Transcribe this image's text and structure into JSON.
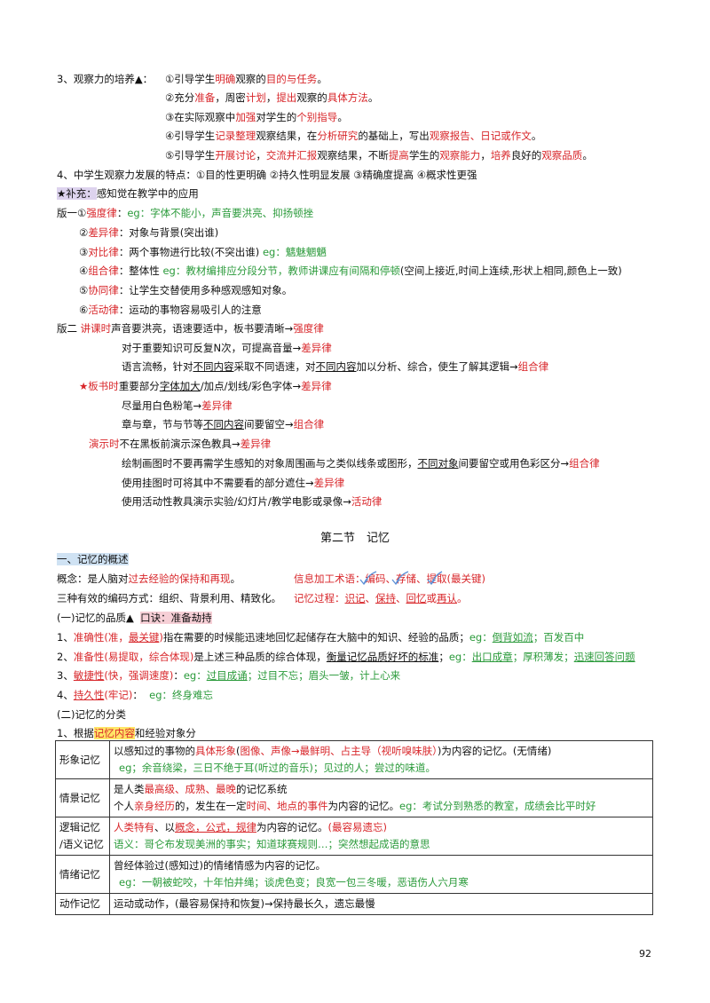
{
  "s3": {
    "label": "3、观察力的培养▲：",
    "i1": {
      "a": "①引导学生",
      "b": "明确",
      "c": "观察的",
      "d": "目的与任务",
      "e": "。"
    },
    "i2": {
      "a": "②充分",
      "b": "准备",
      "c": "，周密",
      "d": "计划",
      "e": "，",
      "f": "提出",
      "g": "观察的",
      "h": "具体方法",
      "i": "。"
    },
    "i3": {
      "a": "③在实际观察中",
      "b": "加强",
      "c": "对学生的",
      "d": "个别指导",
      "e": "。"
    },
    "i4": {
      "a": "④引导学生",
      "b": "记录整理",
      "c": "观察结果，在",
      "d": "分析研究",
      "e": "的基础上，写出",
      "f": "观察报告、日记或作文",
      "g": "。"
    },
    "i5": {
      "a": "⑤引导学生",
      "b": "开展讨论",
      "c": "，",
      "d": "交流并汇报",
      "e": "观察结果，不断",
      "f": "提高",
      "g": "学生的",
      "h": "观察能力",
      "i": "，",
      "j": "培养",
      "k": "良好的",
      "l": "观察品质",
      "m": "。"
    }
  },
  "s4": "4、中学生观察力发展的特点：①目的性更明确 ②持久性明显发展 ③精确度提高 ④概求性更强",
  "supp": {
    "star": "★补充：",
    "text": "感知觉在教学中的应用"
  },
  "v1": {
    "r1": {
      "a": "版一①",
      "b": "强度律",
      "c": "：",
      "d": "eg：字体不能小，声音要洪亮、抑扬顿挫"
    },
    "r2": {
      "a": "②",
      "b": "差异律",
      "c": "：对象与背景(突出谁)"
    },
    "r3": {
      "a": "③",
      "b": "对比律",
      "c": "：两个事物进行比较(不突出谁)",
      "d": "eg：魑魅魍魉"
    },
    "r4": {
      "a": "④",
      "b": "组合律",
      "c": "：整体性",
      "d": "eg：教材编排应分段分节，教师讲课应有间隔和停顿",
      "e": "(空间上接近,时间上连续,形状上相同,颜色上一致)"
    },
    "r5": {
      "a": "⑤",
      "b": "协同律",
      "c": "：让学生交替使用多种感观感知对象。"
    },
    "r6": {
      "a": "⑥",
      "b": "活动律",
      "c": "：运动的事物容易吸引人的注意"
    }
  },
  "v2": {
    "r1": {
      "a": "版二",
      "b": "讲课时",
      "c": "声音要洪亮，语速要适中，板书要清晰",
      "d": "→",
      "e": "强度律"
    },
    "r2": {
      "a": "对于重要知识可反复N次，可提高音量",
      "b": "→",
      "c": "差异律"
    },
    "r3": {
      "a": "语言流畅，针对",
      "b": "不同内容",
      "c": "采取不同语速，对",
      "d": "不同内容",
      "e": "加以分析、综合，使生了解其逻辑",
      "f": "→",
      "g": "组合律"
    },
    "r4": {
      "a": "★板书时",
      "b": "重要部分",
      "c": "字体加大",
      "d": "/加点/划线/彩色字体",
      "e": "→",
      "f": "差异律"
    },
    "r5": {
      "a": "尽量用白色粉笔",
      "b": "→",
      "c": "差异律"
    },
    "r6": {
      "a": "章与章，节与节等",
      "b": "不同内容",
      "c": "间要留空",
      "d": "→",
      "e": "组合律"
    },
    "r7": {
      "a": "演示时",
      "b": "不在黑板前演示深色教具",
      "c": "→",
      "d": "差异律"
    },
    "r8": {
      "a": "绘制画图时不要再需学生感知的对象周围画与之类似线条或图形，",
      "b": "不同对象",
      "c": "间要留空或用色彩区分",
      "d": "→",
      "e": "组合律"
    },
    "r9": {
      "a": "使用挂图时可将其中不需要看的部分遮住",
      "b": "→",
      "c": "差异律"
    },
    "r10": {
      "a": "使用活动性教具演示实验/幻灯片/教学电影或录像",
      "b": "→",
      "c": "活动律"
    }
  },
  "section_title": "第二节　记忆",
  "m1": {
    "head": "一、记忆的概述",
    "concept": {
      "a": "概念：是人脑对",
      "b": "过去经验的保持和再现",
      "c": "。"
    },
    "info": "信息加工术语：编码、存储、提取(最关键)",
    "coding": "三种有效的编码方式：组织、背景利用、精致化。",
    "process": {
      "a": "记忆过程：",
      "b": "识记",
      "c": "、",
      "d": "保持",
      "e": "、",
      "f": "回忆",
      "g": "或",
      "h": "再认",
      "i": "。"
    }
  },
  "quality": {
    "head": "(一)记忆的品质▲",
    "tip": "口诀：准备劫持",
    "q1": {
      "a": "1、",
      "b": "准确性",
      "c": "(准，",
      "d": "最关键",
      "e": ")",
      "f": "指在需要的时候能迅速地回忆起储存在大脑中的知识、经验的品质；",
      "g": "eg：",
      "h": "倒背如流",
      "i": "；百发百中"
    },
    "q2": {
      "a": "2、",
      "b": "准备性",
      "c": "(易提取，综合体现)",
      "d": "是上述三种品质的综合体现，",
      "e": "衡量记忆品质好坏的标准",
      "f": "；",
      "g": "eg：",
      "h": "出口成章",
      "i": "；厚积薄发；",
      "j": "迅速回答问题"
    },
    "q3": {
      "a": "3、",
      "b": "敏捷性",
      "c": "(快，强调速度)",
      "d": "：",
      "e": "eg：",
      "f": "过目成诵",
      "g": "；过目不忘；眉头一皱，计上心来"
    },
    "q4": {
      "a": "4、",
      "b": "持久性",
      "c": "(牢记)",
      "d": "：",
      "e": "eg：终身难忘"
    }
  },
  "class": {
    "head": "(二)记忆的分类",
    "basis": {
      "a": "1、根据",
      "b": "记忆内容",
      "c": "和经验对象分"
    }
  },
  "table": {
    "xingxiang": {
      "k": "形象记忆",
      "l1": {
        "a": "以感知过的事物的",
        "b": "具体形象",
        "c": "(",
        "d": "图像、声像→最鲜明、占主导",
        "e": "（",
        "f": "视听嗅味肤",
        "g": "）",
        "h": ")为内容的记忆。(无情绪)"
      },
      "l2": "eg；余音绕梁，三日不绝于耳(听过的音乐)；见过的人；尝过的味道。"
    },
    "qingjing": {
      "k": "情景记忆",
      "l1": {
        "a": "是人类",
        "b": "最高级、成熟、最晚",
        "c": "的记忆系统"
      },
      "l2": {
        "a": "个人",
        "b": "亲身经历",
        "c": "的，发生在一定",
        "d": "时间、地点的事件",
        "e": "为内容的记忆。",
        "f": "eg：考试分到熟悉的教室，成绩会比平时好"
      }
    },
    "luoji": {
      "k1": "逻辑记忆",
      "k2": "/语义记忆",
      "l1": {
        "a": "人类特有",
        "b": "、以",
        "c": "概念，公式，规律",
        "d": "为内容的记忆。",
        "e": "(最容易遗忘)"
      },
      "l2": {
        "a": "语义：",
        "b": "哥仑布发现美洲的事实；知道球赛规则…；突然想起成语的意思"
      }
    },
    "qingxu": {
      "k": "情绪记忆",
      "l1": "曾经体验过(感知过)的情绪情感为内容的记忆。",
      "l2": "eg：一朝被蛇咬，十年怕井绳；谈虎色变；良宽一包三冬暖，恶语伤人六月寒"
    },
    "dongzuo": {
      "k": "动作记忆",
      "l1": "运动或动作，(最容易保持和恢复)→保持最长久，遗忘最慢"
    }
  },
  "page_number": "92",
  "colors": {
    "red": "#d8262a",
    "green": "#2a9a3a",
    "blue_hl": "#cfe2f3",
    "pink_hl": "#f6cfd6",
    "yellow_hl": "#ffe566",
    "purple_hl": "#ddd3ee"
  }
}
